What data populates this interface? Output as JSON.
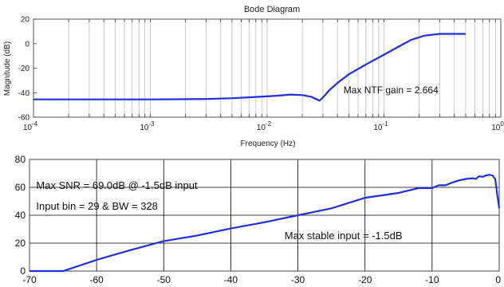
{
  "chart_data": [
    {
      "type": "line",
      "title": "Bode Diagram",
      "xlabel": "Frequency  (Hz)",
      "ylabel": "Magnitude (dB)",
      "xscale": "log",
      "xlim": [
        0.0001,
        1
      ],
      "ylim": [
        -60,
        20
      ],
      "grid": "vertical-log",
      "x_tick_labels": [
        {
          "base": "10",
          "exp": "-4",
          "value": 0.0001
        },
        {
          "base": "10",
          "exp": "-3",
          "value": 0.001
        },
        {
          "base": "10",
          "exp": "-2",
          "value": 0.01
        },
        {
          "base": "10",
          "exp": "-1",
          "value": 0.1
        },
        {
          "base": "10",
          "exp": "0",
          "value": 1
        }
      ],
      "y_ticks": [
        20,
        0,
        -20,
        -40,
        -60
      ],
      "line_color": "#1f2fe0",
      "series": [
        {
          "x": [
            0.0001,
            0.001,
            0.003,
            0.005,
            0.008,
            0.012,
            0.016,
            0.02,
            0.024,
            0.028,
            0.03,
            0.034,
            0.04,
            0.05,
            0.07,
            0.1,
            0.13,
            0.17,
            0.22,
            0.3,
            0.5
          ],
          "y": [
            -45.5,
            -45.5,
            -45.2,
            -44.5,
            -43.5,
            -42.5,
            -41.5,
            -42,
            -43.5,
            -46.5,
            -44,
            -38,
            -32,
            -25,
            -17,
            -9,
            -3,
            3,
            6.5,
            8,
            8
          ]
        }
      ],
      "annotations": [
        {
          "text": "Max NTF gain = 2.664",
          "x": 0.045,
          "y": -38
        }
      ]
    },
    {
      "type": "line",
      "xlim": [
        -70,
        0
      ],
      "ylim": [
        0,
        80
      ],
      "grid": "both",
      "x_ticks": [
        -70,
        -60,
        -50,
        -40,
        -30,
        -20,
        -10,
        0
      ],
      "y_ticks": [
        80,
        60,
        40,
        20,
        0
      ],
      "line_color": "#1f2fe0",
      "series": [
        {
          "x": [
            -70,
            -65,
            -60,
            -55,
            -50,
            -45,
            -40,
            -35,
            -30,
            -25,
            -20,
            -15,
            -12,
            -10,
            -9,
            -8,
            -7,
            -6,
            -5,
            -4,
            -3.5,
            -3,
            -2.5,
            -2,
            -1.5,
            -1,
            -0.6,
            -0.3,
            0
          ],
          "y": [
            0,
            0,
            8,
            15,
            21.5,
            25.5,
            30.5,
            35,
            40,
            45,
            52.5,
            56,
            59.5,
            59.5,
            61.5,
            61.5,
            63.5,
            65,
            66,
            66.5,
            66,
            68,
            67.5,
            68.5,
            69,
            68.5,
            66,
            55,
            45
          ]
        }
      ],
      "annotations": [
        {
          "text": "Max SNR = 69.0dB @  -1.5dB input",
          "x": -69,
          "y": 59
        },
        {
          "text": "Input bin =  29 & BW = 328",
          "x": -69,
          "y": 44
        },
        {
          "text": "Max stable input = -1.5dB",
          "x": -32,
          "y": 23
        }
      ]
    }
  ]
}
